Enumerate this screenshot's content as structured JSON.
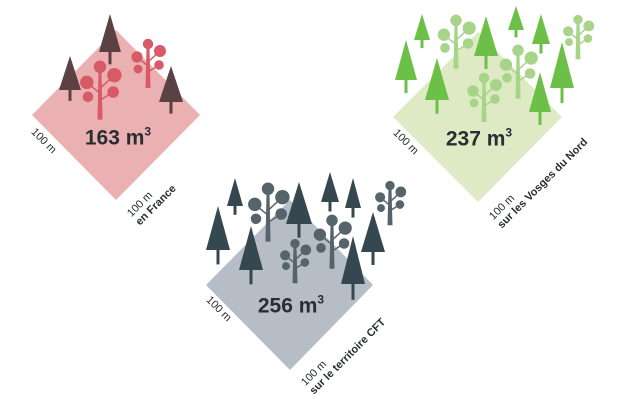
{
  "colors": {
    "france": {
      "diamond": "#ebb0b1",
      "tree_conifer": "#5b4044",
      "tree_broadleaf": "#d85a66"
    },
    "vosges": {
      "diamond": "#ddeac3",
      "tree_conifer": "#6cc047",
      "tree_broadleaf": "#a7d488"
    },
    "cft": {
      "diamond": "#b6bdc6",
      "tree_conifer": "#35474f",
      "tree_broadleaf": "#55636b"
    }
  },
  "panels": {
    "france": {
      "volume": "163 m",
      "volume_sup": "3",
      "side_left": "100 m",
      "side_bottom": "100 m",
      "area_label": "en France"
    },
    "vosges": {
      "volume": "237 m",
      "volume_sup": "3",
      "side_left": "100 m",
      "side_bottom": "100 m",
      "area_label": "sur les Vosges du Nord"
    },
    "cft": {
      "volume": "256 m",
      "volume_sup": "3",
      "side_left": "100 m",
      "side_bottom": "100 m",
      "area_label": "sur le territoire CFT"
    }
  }
}
